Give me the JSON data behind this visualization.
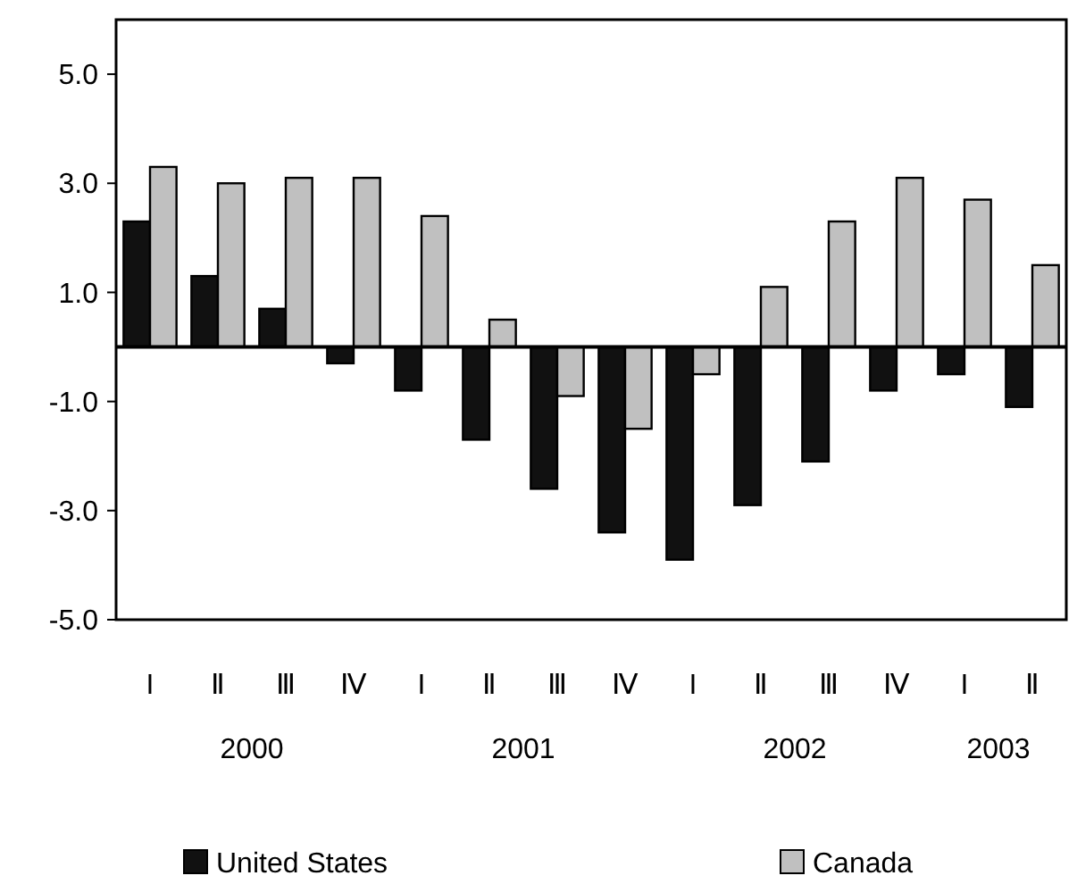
{
  "chart_data": {
    "type": "bar",
    "categories": [
      "I",
      "Ⅱ",
      "Ⅲ",
      "Ⅳ",
      "I",
      "Ⅱ",
      "Ⅲ",
      "Ⅳ",
      "I",
      "Ⅱ",
      "Ⅲ",
      "Ⅳ",
      "I",
      "Ⅱ"
    ],
    "annotations": [
      "2000",
      "2001",
      "2002",
      "2003"
    ],
    "series": [
      {
        "name": "United States",
        "color": "#111111",
        "values": [
          2.3,
          1.3,
          0.7,
          -0.3,
          -0.8,
          -1.7,
          -2.6,
          -3.4,
          -3.9,
          -2.9,
          -2.1,
          -0.8,
          -0.5,
          -1.1
        ]
      },
      {
        "name": "Canada",
        "color": "#c0c0c0",
        "values": [
          3.3,
          3.0,
          3.1,
          3.1,
          2.4,
          0.5,
          -0.9,
          -1.5,
          -0.5,
          1.1,
          2.3,
          3.1,
          2.7,
          1.5
        ]
      }
    ],
    "ylim": [
      -5,
      6
    ],
    "yticks": [
      {
        "value": -5,
        "label": "-5.0"
      },
      {
        "value": -3,
        "label": "-3.0"
      },
      {
        "value": -1,
        "label": "-1.0"
      },
      {
        "value": 1,
        "label": "1.0"
      },
      {
        "value": 3,
        "label": "3.0"
      },
      {
        "value": 5,
        "label": "5.0"
      }
    ],
    "grid": false,
    "legend": "bottom"
  }
}
